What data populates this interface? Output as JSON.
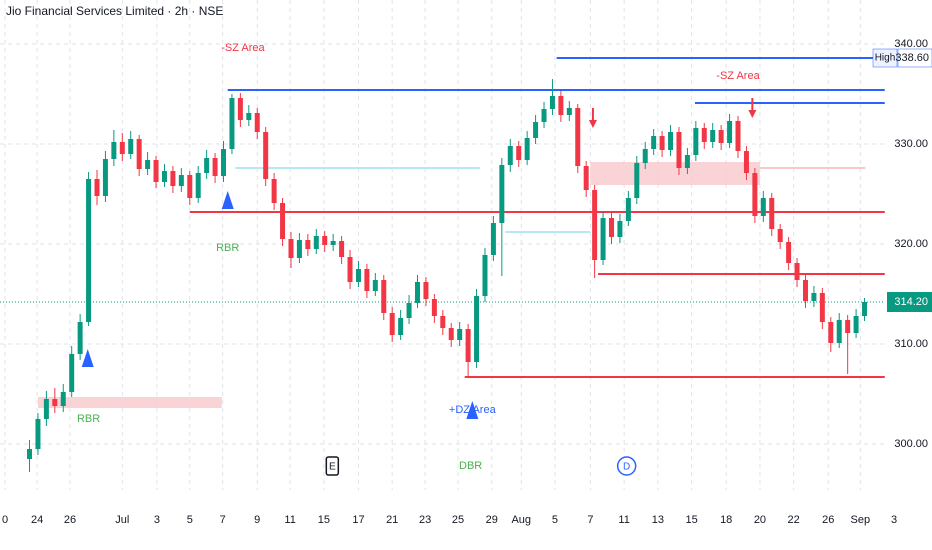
{
  "chart_data": {
    "type": "candlestick",
    "title": "Jio Financial Services Limited · 2h · NSE",
    "up_color": "#089981",
    "down_color": "#f23645",
    "xlim": [
      -0.5,
      110
    ],
    "ylim": [
      295.4,
      344.4
    ],
    "grid": true,
    "yticks": [
      {
        "value": 300,
        "label": "300.00"
      },
      {
        "value": 310,
        "label": "310.00"
      },
      {
        "value": 320,
        "label": "320.00"
      },
      {
        "value": 330,
        "label": "330.00"
      },
      {
        "value": 340,
        "label": "340.00"
      }
    ],
    "xticks": [
      {
        "value": 0.1,
        "label": "0"
      },
      {
        "value": 3.9,
        "label": "24"
      },
      {
        "value": 7.8,
        "label": "26"
      },
      {
        "value": 14,
        "label": "Jul"
      },
      {
        "value": 18.1,
        "label": "3"
      },
      {
        "value": 22,
        "label": "5"
      },
      {
        "value": 25.9,
        "label": "7"
      },
      {
        "value": 30,
        "label": "9"
      },
      {
        "value": 33.9,
        "label": "11"
      },
      {
        "value": 37.9,
        "label": "15"
      },
      {
        "value": 42,
        "label": "17"
      },
      {
        "value": 46,
        "label": "21"
      },
      {
        "value": 49.9,
        "label": "23"
      },
      {
        "value": 53.8,
        "label": "25"
      },
      {
        "value": 57.8,
        "label": "29"
      },
      {
        "value": 61.3,
        "label": "Aug"
      },
      {
        "value": 65.3,
        "label": "5"
      },
      {
        "value": 69.5,
        "label": "7"
      },
      {
        "value": 73.5,
        "label": "11"
      },
      {
        "value": 77.5,
        "label": "13"
      },
      {
        "value": 81.5,
        "label": "15"
      },
      {
        "value": 85.6,
        "label": "18"
      },
      {
        "value": 89.6,
        "label": "20"
      },
      {
        "value": 93.6,
        "label": "22"
      },
      {
        "value": 97.7,
        "label": "26"
      },
      {
        "value": 101.5,
        "label": "Sep"
      },
      {
        "value": 105.5,
        "label": "3"
      }
    ],
    "x": [
      3,
      4,
      5,
      6,
      7,
      8,
      9,
      10,
      11,
      12,
      13,
      14,
      15,
      16,
      17,
      18,
      19,
      20,
      21,
      22,
      23,
      24,
      25,
      26,
      27,
      28,
      29,
      30,
      31,
      32,
      33,
      34,
      35,
      36,
      37,
      38,
      39,
      40,
      41,
      42,
      43,
      44,
      45,
      46,
      47,
      48,
      49,
      50,
      51,
      52,
      53,
      54,
      55,
      56,
      57,
      58,
      59,
      60,
      61,
      62,
      63,
      64,
      65,
      66,
      67,
      68,
      69,
      70,
      71,
      72,
      73,
      74,
      75,
      76,
      77,
      78,
      79,
      80,
      81,
      82,
      83,
      84,
      85,
      86,
      87,
      88,
      89,
      90,
      91,
      92,
      93,
      94,
      95,
      96,
      97,
      98,
      99,
      100,
      101,
      102
    ],
    "candles": [
      [
        298.5,
        300.4,
        297.2,
        299.5
      ],
      [
        299.5,
        303.1,
        298.9,
        302.5
      ],
      [
        302.5,
        305.3,
        301.8,
        304.5
      ],
      [
        304.5,
        305.6,
        303.1,
        303.8
      ],
      [
        303.8,
        306.0,
        303.2,
        305.2
      ],
      [
        305.2,
        309.8,
        304.7,
        309
      ],
      [
        309,
        313.0,
        308.4,
        312.2
      ],
      [
        312.2,
        327.2,
        311.8,
        326.5
      ],
      [
        326.5,
        327.4,
        323.9,
        324.8
      ],
      [
        324.8,
        329.3,
        324.2,
        328.5
      ],
      [
        328.5,
        331.4,
        327.8,
        330.2
      ],
      [
        330.2,
        331.1,
        328.3,
        329
      ],
      [
        329,
        331.3,
        328.5,
        330.5
      ],
      [
        330.5,
        330.9,
        326.8,
        327.5
      ],
      [
        327.5,
        329.2,
        326.9,
        328.4
      ],
      [
        328.4,
        328.8,
        325.6,
        326.2
      ],
      [
        326.2,
        328.0,
        325.7,
        327.3
      ],
      [
        327.3,
        327.8,
        325.1,
        325.8
      ],
      [
        325.8,
        327.6,
        325.2,
        326.9
      ],
      [
        326.9,
        327.3,
        323.9,
        324.6
      ],
      [
        324.6,
        327.8,
        324.1,
        327.1
      ],
      [
        327.1,
        329.4,
        326.5,
        328.6
      ],
      [
        328.6,
        329.1,
        326.1,
        326.8
      ],
      [
        326.8,
        330.3,
        326.2,
        329.5
      ],
      [
        329.5,
        335.0,
        329.0,
        334.6
      ],
      [
        334.6,
        335.1,
        331.7,
        332.4
      ],
      [
        332.4,
        333.9,
        331.8,
        333.1
      ],
      [
        333.1,
        333.6,
        330.5,
        331.2
      ],
      [
        331.2,
        331.7,
        325.8,
        326.5
      ],
      [
        326.5,
        327.1,
        323.4,
        324.1
      ],
      [
        324.1,
        324.6,
        319.8,
        320.5
      ],
      [
        320.5,
        321.2,
        317.6,
        318.6
      ],
      [
        318.6,
        321.1,
        318.1,
        320.4
      ],
      [
        320.4,
        321.0,
        318.8,
        319.5
      ],
      [
        319.5,
        321.5,
        319.0,
        320.8
      ],
      [
        320.8,
        321.3,
        319.2,
        319.9
      ],
      [
        319.9,
        321.0,
        319.3,
        320.3
      ],
      [
        320.3,
        320.8,
        318.0,
        318.7
      ],
      [
        318.7,
        319.4,
        315.5,
        316.2
      ],
      [
        316.2,
        318.3,
        315.7,
        317.5
      ],
      [
        317.5,
        318.0,
        314.6,
        315.3
      ],
      [
        315.3,
        317.1,
        314.8,
        316.4
      ],
      [
        316.4,
        316.9,
        312.4,
        313.1
      ],
      [
        313.1,
        313.7,
        310.2,
        310.9
      ],
      [
        310.9,
        313.4,
        310.4,
        312.6
      ],
      [
        312.6,
        314.9,
        312.0,
        314.1
      ],
      [
        314.1,
        316.9,
        313.6,
        316.2
      ],
      [
        316.2,
        316.7,
        313.8,
        314.5
      ],
      [
        314.5,
        315.0,
        312.1,
        312.8
      ],
      [
        312.8,
        313.4,
        310.9,
        311.6
      ],
      [
        311.6,
        312.1,
        309.7,
        310.4
      ],
      [
        310.4,
        312.2,
        309.8,
        311.5
      ],
      [
        311.5,
        312.0,
        306.8,
        308.2
      ],
      [
        308.2,
        315.5,
        307.6,
        314.8
      ],
      [
        314.8,
        319.6,
        314.2,
        318.9
      ],
      [
        318.9,
        322.8,
        318.3,
        322.1
      ],
      [
        322.1,
        328.6,
        316.8,
        327.9
      ],
      [
        327.9,
        330.5,
        327.2,
        329.8
      ],
      [
        329.8,
        330.3,
        327.7,
        328.4
      ],
      [
        328.4,
        331.3,
        327.9,
        330.6
      ],
      [
        330.6,
        332.9,
        330.0,
        332.2
      ],
      [
        332.2,
        334.2,
        331.6,
        333.5
      ],
      [
        333.5,
        336.5,
        332.9,
        334.8
      ],
      [
        334.8,
        335.3,
        332.2,
        332.9
      ],
      [
        332.9,
        334.3,
        332.3,
        333.6
      ],
      [
        333.6,
        334.0,
        327.1,
        327.8
      ],
      [
        327.8,
        328.3,
        324.7,
        325.4
      ],
      [
        325.4,
        325.9,
        316.6,
        318.4
      ],
      [
        318.4,
        323.3,
        317.9,
        322.6
      ],
      [
        322.6,
        323.1,
        320.0,
        320.7
      ],
      [
        320.7,
        323.0,
        320.1,
        322.3
      ],
      [
        322.3,
        325.3,
        321.8,
        324.6
      ],
      [
        324.6,
        328.8,
        324.0,
        328.1
      ],
      [
        328.1,
        330.2,
        327.5,
        329.5
      ],
      [
        329.5,
        331.5,
        328.9,
        330.8
      ],
      [
        330.8,
        331.3,
        328.7,
        329.4
      ],
      [
        329.4,
        331.9,
        328.8,
        331.2
      ],
      [
        331.2,
        331.7,
        326.9,
        327.6
      ],
      [
        327.6,
        329.6,
        327.0,
        328.9
      ],
      [
        328.9,
        332.3,
        328.3,
        331.6
      ],
      [
        331.6,
        332.1,
        329.5,
        330.2
      ],
      [
        330.2,
        332.1,
        329.6,
        331.4
      ],
      [
        331.4,
        331.9,
        329.4,
        330.1
      ],
      [
        330.1,
        333.0,
        329.6,
        332.3
      ],
      [
        332.3,
        332.8,
        328.6,
        329.3
      ],
      [
        329.3,
        329.8,
        326.4,
        327.1
      ],
      [
        327.1,
        327.6,
        322.1,
        322.8
      ],
      [
        322.8,
        325.3,
        322.2,
        324.6
      ],
      [
        324.6,
        325.1,
        320.8,
        321.5
      ],
      [
        321.5,
        322.0,
        319.5,
        320.2
      ],
      [
        320.2,
        320.7,
        317.4,
        318.1
      ],
      [
        318.1,
        318.6,
        315.7,
        316.4
      ],
      [
        316.4,
        316.9,
        313.6,
        314.3
      ],
      [
        314.3,
        315.8,
        313.7,
        315.1
      ],
      [
        315.1,
        315.6,
        311.5,
        312.2
      ],
      [
        312.2,
        312.7,
        309.2,
        310.1
      ],
      [
        310.1,
        313.1,
        309.6,
        312.4
      ],
      [
        312.4,
        312.9,
        307.0,
        311.1
      ],
      [
        311.1,
        313.5,
        310.6,
        312.8
      ],
      [
        312.8,
        314.6,
        312.3,
        314.2
      ]
    ],
    "levels": [
      {
        "y": 338.6,
        "x0": 65.5,
        "x1": 103.2,
        "color": "#2962ff"
      },
      {
        "y": 335.4,
        "x0": 26.5,
        "x1": 104.4,
        "color": "#2962ff"
      },
      {
        "y": 334.1,
        "x0": 81.9,
        "x1": 104.4,
        "color": "#2962ff"
      },
      {
        "y": 323.2,
        "x0": 22,
        "x1": 104.4,
        "color": "#f23645"
      },
      {
        "y": 317.0,
        "x0": 70.4,
        "x1": 104.4,
        "color": "#f23645"
      },
      {
        "y": 306.7,
        "x0": 54.6,
        "x1": 104.4,
        "color": "#f23645"
      },
      {
        "y": 327.6,
        "x0": 27.4,
        "x1": 56.4,
        "color": "#b2ebf2"
      },
      {
        "y": 321.2,
        "x0": 59.4,
        "x1": 69.5,
        "color": "#b2ebf2"
      },
      {
        "y": 327.6,
        "x0": 89.6,
        "x1": 102.1,
        "color": "#f8c8cc"
      }
    ],
    "zones": [
      {
        "y0": 303.6,
        "y1": 304.7,
        "x0": 4,
        "x1": 25.8,
        "color": "#f8c8cc"
      },
      {
        "y0": 325.9,
        "y1": 328.2,
        "x0": 69.5,
        "x1": 89.6,
        "color": "#f8c8cc"
      }
    ],
    "markers": [
      {
        "x": 9.9,
        "y": 308.6,
        "shape": "up",
        "color": "#2962ff"
      },
      {
        "x": 26.5,
        "y": 324.4,
        "shape": "up",
        "color": "#2962ff"
      },
      {
        "x": 55.5,
        "y": 303.4,
        "shape": "up",
        "color": "#2962ff"
      },
      {
        "x": 69.8,
        "y": 332.4,
        "shape": "down",
        "color": "#f23645"
      },
      {
        "x": 88.7,
        "y": 333.4,
        "shape": "down",
        "color": "#f23645"
      }
    ],
    "annotations": [
      {
        "text": "RBR",
        "x": 10.0,
        "y": 302.5,
        "color": "#4caf50"
      },
      {
        "text": "RBR",
        "x": 26.5,
        "y": 319.6,
        "color": "#4caf50"
      },
      {
        "text": "DBR",
        "x": 55.3,
        "y": 297.8,
        "color": "#4caf50"
      },
      {
        "text": "+DZ Area",
        "x": 55.5,
        "y": 303.4,
        "color": "#2962ff"
      },
      {
        "text": "-SZ Area",
        "x": 28.3,
        "y": 339.6,
        "color": "#f23645"
      },
      {
        "text": "-SZ Area",
        "x": 87,
        "y": 336.8,
        "color": "#f23645"
      }
    ],
    "events": [
      {
        "text": "E",
        "x": 38.9,
        "shape": "square",
        "color": "#131722"
      },
      {
        "text": "D",
        "x": 73.8,
        "shape": "circle",
        "color": "#2962ff"
      }
    ],
    "high_label": {
      "text": "High",
      "value": 338.6,
      "value_label": "338.60"
    },
    "last_price": {
      "value": 314.2,
      "value_label": "314.20",
      "color": "#089981"
    }
  }
}
